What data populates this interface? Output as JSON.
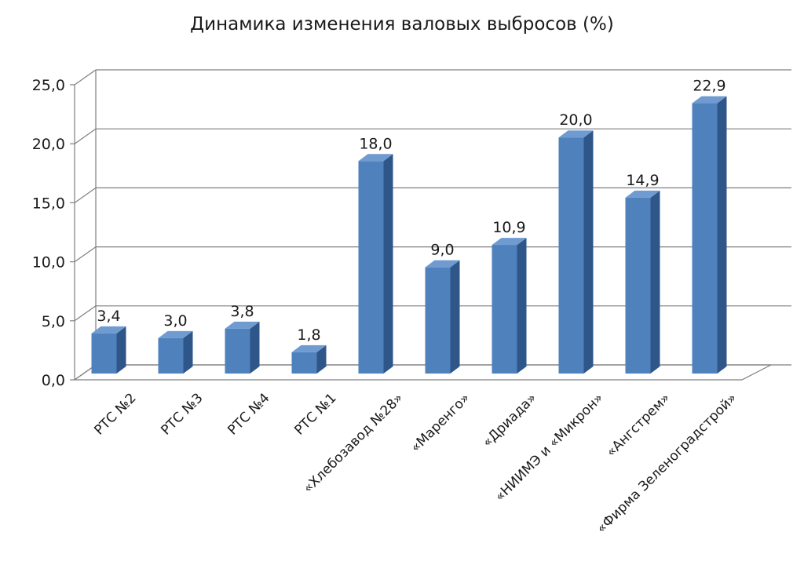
{
  "chart_data": {
    "type": "bar",
    "title": "Динамика изменения валовых выбросов (%)",
    "categories": [
      "РТС №2",
      "РТС №3",
      "РТС №4",
      "РТС №1",
      "«Хлебозавод №28»",
      "«Маренго»",
      "«Дриада»",
      "«НИИМЭ и «Микрон»",
      "«Ангстрем»",
      "«Фирма Зеленоградстрой»"
    ],
    "series": [
      {
        "values": [
          3.4,
          3.0,
          3.8,
          1.8,
          18.0,
          9.0,
          10.9,
          20.0,
          14.9,
          22.9
        ]
      }
    ],
    "data_labels": [
      "3,4",
      "3,0",
      "3,8",
      "1,8",
      "18,0",
      "9,0",
      "10,9",
      "20,0",
      "14,9",
      "22,9"
    ],
    "ylim": [
      0,
      25
    ],
    "y_ticks": [
      "0,0",
      "5,0",
      "10,0",
      "15,0",
      "20,0",
      "25,0"
    ],
    "grid": true,
    "legend": "none",
    "style": "3d-column",
    "colors": {
      "bar_front": "#4f81bd",
      "bar_side": "#2f5689",
      "bar_top": "#6f9bd1",
      "grid": "#7f7f7f"
    }
  }
}
